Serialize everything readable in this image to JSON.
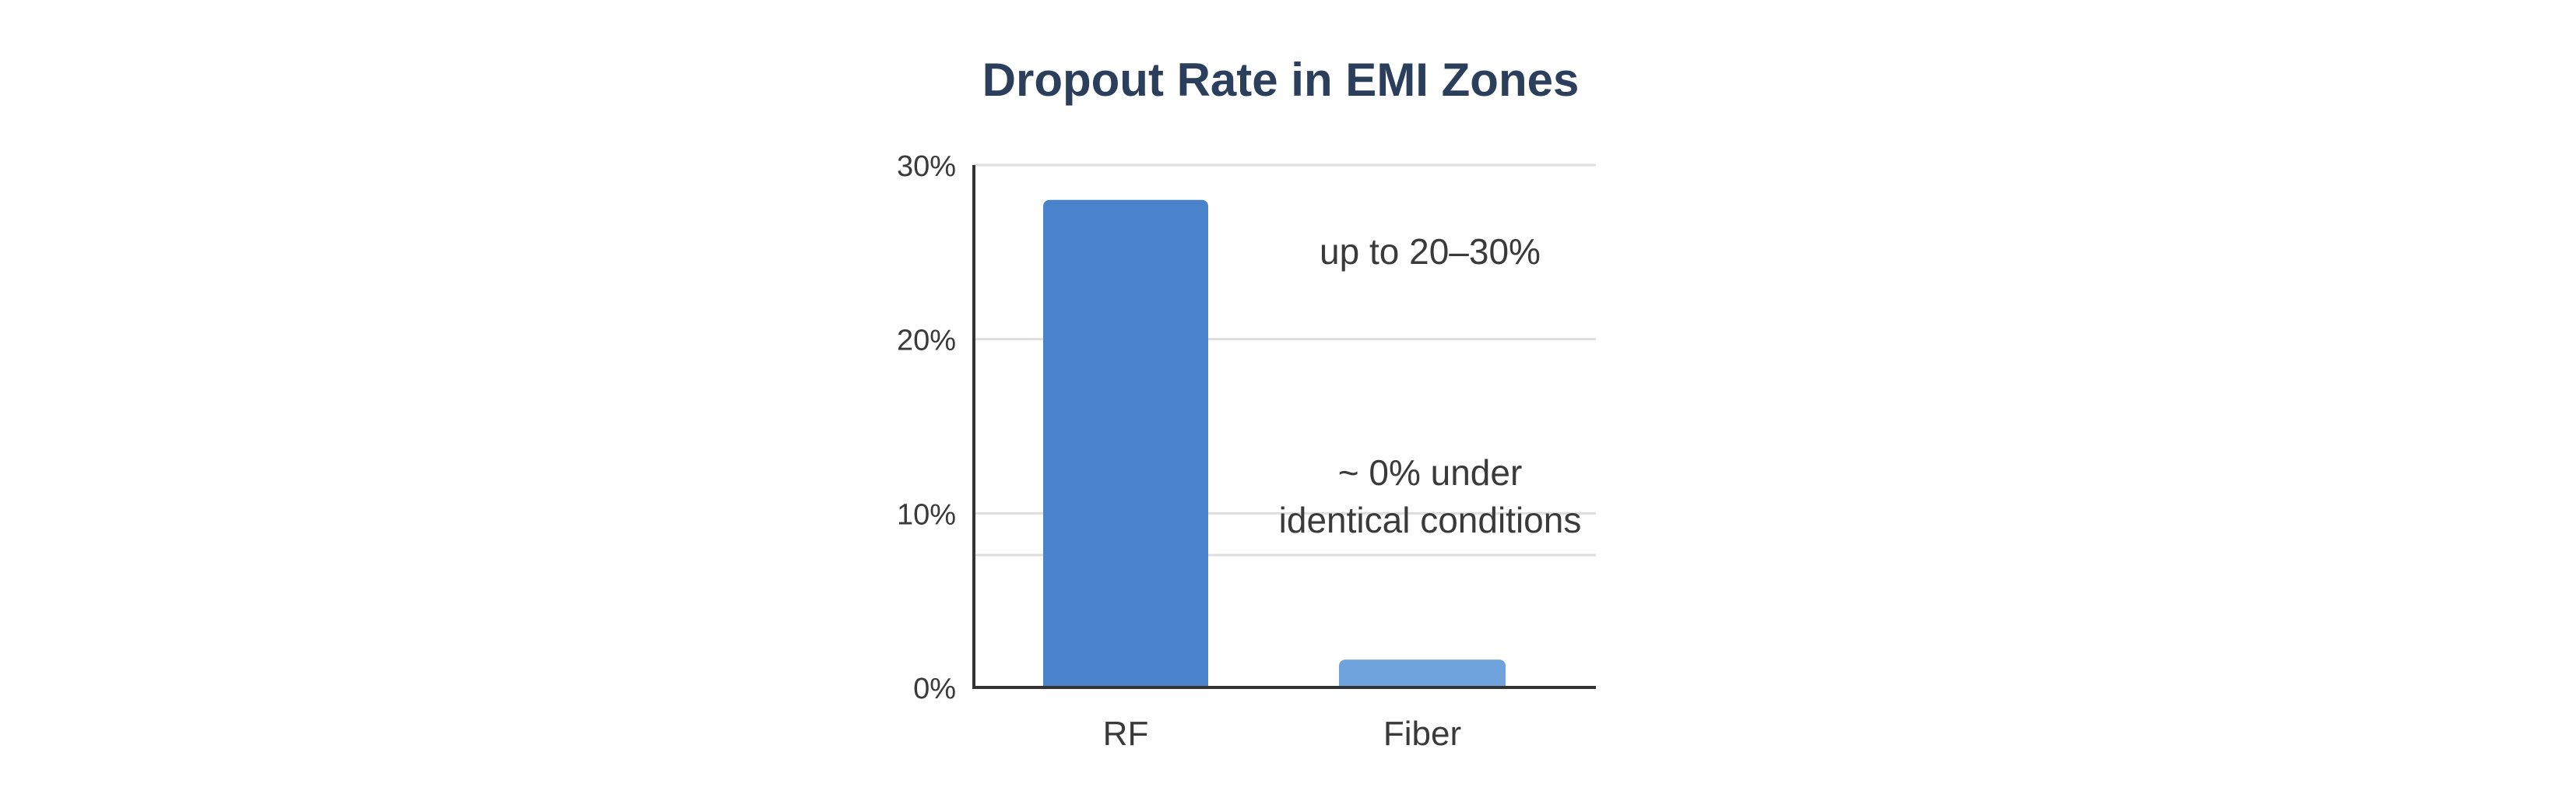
{
  "chart_data": {
    "type": "bar",
    "title": "Dropout Rate in EMI Zones",
    "categories": [
      "RF",
      "Fiber"
    ],
    "values": [
      28,
      1.6
    ],
    "xlabel": "",
    "ylabel": "",
    "ylim": [
      0,
      30
    ],
    "yticks": [
      {
        "value": 0,
        "label": "0%"
      },
      {
        "value": 10,
        "label": "10%"
      },
      {
        "value": 20,
        "label": "20%"
      },
      {
        "value": 30,
        "label": "30%"
      }
    ],
    "gridlines": [
      7.6,
      10,
      20,
      30
    ],
    "grid": true,
    "annotations": [
      {
        "lines": [
          "up to 20–30%"
        ]
      },
      {
        "lines": [
          "~ 0% under",
          "identical conditions"
        ]
      }
    ],
    "colors": {
      "title": "#2b3f5c",
      "RF": "#4a82cc",
      "Fiber": "#6fa3dc",
      "axis": "#333333",
      "grid": "#dedede",
      "text": "#3a3a3a"
    }
  }
}
